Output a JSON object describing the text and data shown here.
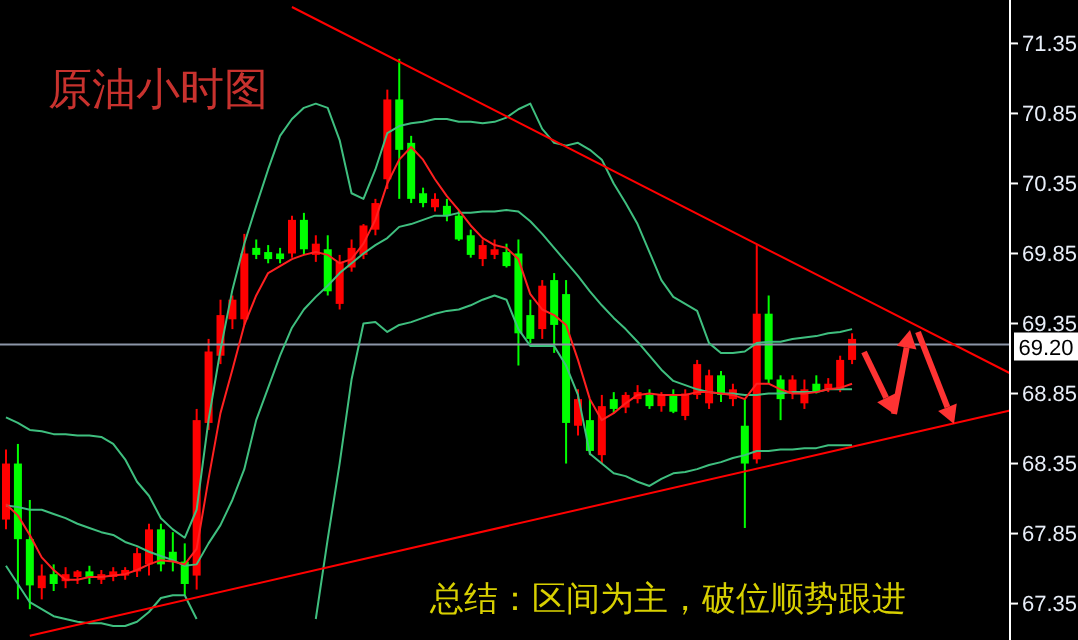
{
  "chart_data": {
    "type": "candlestick",
    "title": "原油小时图",
    "annotations": [
      "总结：区间为主，破位顺势跟进"
    ],
    "categories": [
      null,
      null,
      null,
      null,
      null,
      null,
      null,
      null,
      null,
      null,
      null,
      null,
      null,
      null,
      null,
      null,
      null,
      null,
      null,
      null,
      null,
      null,
      null,
      null,
      null,
      null,
      null,
      null,
      null,
      null,
      null,
      null,
      null,
      null,
      null,
      null,
      null,
      null,
      null,
      null,
      null,
      null,
      null,
      null,
      null,
      null,
      null,
      null,
      null,
      null,
      null,
      null,
      null,
      null,
      null,
      null,
      null,
      null,
      null,
      null,
      null,
      null,
      null,
      null,
      null,
      null,
      null,
      null,
      null,
      null,
      null,
      null
    ],
    "ohlc": [
      [
        67.95,
        68.45,
        67.88,
        68.35
      ],
      [
        68.35,
        68.49,
        67.38,
        67.81
      ],
      [
        67.81,
        68.09,
        67.31,
        67.48
      ],
      [
        67.46,
        67.63,
        67.38,
        67.55
      ],
      [
        67.56,
        67.63,
        67.44,
        67.49
      ],
      [
        67.51,
        67.61,
        67.46,
        67.56
      ],
      [
        67.54,
        67.59,
        67.49,
        67.58
      ],
      [
        67.58,
        67.62,
        67.49,
        67.54
      ],
      [
        67.52,
        67.59,
        67.49,
        67.56
      ],
      [
        67.54,
        67.61,
        67.51,
        67.58
      ],
      [
        67.55,
        67.61,
        67.52,
        67.59
      ],
      [
        67.58,
        67.75,
        67.54,
        67.71
      ],
      [
        67.63,
        67.92,
        67.55,
        67.88
      ],
      [
        67.88,
        67.92,
        67.58,
        67.63
      ],
      [
        67.72,
        67.86,
        67.58,
        67.65
      ],
      [
        67.65,
        67.78,
        67.41,
        67.49
      ],
      [
        67.55,
        68.74,
        67.45,
        68.66
      ],
      [
        68.64,
        69.24,
        68.59,
        69.15
      ],
      [
        69.12,
        69.52,
        69.06,
        69.41
      ],
      [
        69.38,
        69.55,
        69.31,
        69.52
      ],
      [
        69.38,
        69.99,
        69.34,
        69.85
      ],
      [
        69.89,
        69.95,
        69.81,
        69.84
      ],
      [
        69.86,
        69.91,
        69.78,
        69.81
      ],
      [
        69.85,
        69.89,
        69.78,
        69.81
      ],
      [
        69.85,
        70.12,
        69.82,
        70.09
      ],
      [
        70.09,
        70.14,
        69.84,
        69.88
      ],
      [
        69.84,
        69.98,
        69.79,
        69.92
      ],
      [
        69.88,
        69.98,
        69.55,
        69.58
      ],
      [
        69.49,
        69.84,
        69.45,
        69.79
      ],
      [
        69.75,
        69.95,
        69.72,
        69.89
      ],
      [
        69.84,
        70.06,
        69.81,
        70.05
      ],
      [
        70.02,
        70.24,
        69.98,
        70.21
      ],
      [
        70.38,
        71.02,
        70.31,
        70.95
      ],
      [
        70.95,
        71.24,
        70.24,
        70.59
      ],
      [
        70.64,
        70.69,
        70.21,
        70.24
      ],
      [
        70.28,
        70.32,
        70.18,
        70.21
      ],
      [
        70.18,
        70.28,
        70.15,
        70.24
      ],
      [
        70.19,
        70.24,
        70.08,
        70.12
      ],
      [
        70.12,
        70.16,
        69.94,
        69.95
      ],
      [
        69.98,
        70.02,
        69.82,
        69.84
      ],
      [
        69.81,
        69.95,
        69.76,
        69.91
      ],
      [
        69.84,
        69.95,
        69.81,
        69.88
      ],
      [
        69.86,
        69.92,
        69.75,
        69.76
      ],
      [
        69.85,
        69.95,
        69.05,
        69.28
      ],
      [
        69.41,
        69.52,
        69.21,
        69.24
      ],
      [
        69.31,
        69.66,
        69.24,
        69.62
      ],
      [
        69.66,
        69.71,
        69.14,
        69.34
      ],
      [
        69.56,
        69.66,
        68.35,
        68.64
      ],
      [
        68.62,
        68.88,
        68.55,
        68.81
      ],
      [
        68.66,
        68.81,
        68.41,
        68.44
      ],
      [
        68.41,
        68.84,
        68.35,
        68.76
      ],
      [
        68.81,
        68.86,
        68.71,
        68.74
      ],
      [
        68.75,
        68.86,
        68.71,
        68.84
      ],
      [
        68.81,
        68.91,
        68.78,
        68.86
      ],
      [
        68.84,
        68.88,
        68.74,
        68.76
      ],
      [
        68.76,
        68.86,
        68.72,
        68.84
      ],
      [
        68.84,
        68.88,
        68.71,
        68.72
      ],
      [
        68.69,
        68.88,
        68.66,
        68.85
      ],
      [
        68.84,
        69.09,
        68.81,
        69.06
      ],
      [
        68.78,
        69.02,
        68.74,
        68.98
      ],
      [
        68.98,
        69.01,
        68.79,
        68.84
      ],
      [
        68.81,
        68.92,
        68.76,
        68.88
      ],
      [
        68.62,
        68.81,
        67.89,
        68.35
      ],
      [
        68.38,
        69.91,
        68.35,
        69.42
      ],
      [
        69.42,
        69.55,
        68.92,
        68.95
      ],
      [
        68.95,
        68.98,
        68.66,
        68.81
      ],
      [
        68.85,
        68.98,
        68.81,
        68.95
      ],
      [
        68.78,
        68.95,
        68.74,
        68.88
      ],
      [
        68.92,
        68.98,
        68.85,
        68.86
      ],
      [
        68.88,
        68.96,
        68.86,
        68.92
      ],
      [
        68.88,
        69.12,
        68.86,
        69.09
      ],
      [
        69.09,
        69.28,
        69.06,
        69.24
      ]
    ],
    "colors": [
      "#ff0000",
      "#00ff00",
      "#00ff00",
      "#ff0000",
      "#00ff00",
      "#ff0000",
      "#ff0000",
      "#00ff00",
      "#ff0000",
      "#ff0000",
      "#ff0000",
      "#ff0000",
      "#ff0000",
      "#00ff00",
      "#00ff00",
      "#00ff00",
      "#ff0000",
      "#ff0000",
      "#ff0000",
      "#ff0000",
      "#ff0000",
      "#00ff00",
      "#00ff00",
      "#00ff00",
      "#ff0000",
      "#00ff00",
      "#ff0000",
      "#00ff00",
      "#ff0000",
      "#ff0000",
      "#ff0000",
      "#ff0000",
      "#ff0000",
      "#00ff00",
      "#00ff00",
      "#00ff00",
      "#ff0000",
      "#00ff00",
      "#00ff00",
      "#00ff00",
      "#ff0000",
      "#ff0000",
      "#00ff00",
      "#00ff00",
      "#00ff00",
      "#ff0000",
      "#00ff00",
      "#00ff00",
      "#ff0000",
      "#00ff00",
      "#ff0000",
      "#00ff00",
      "#ff0000",
      "#ff0000",
      "#00ff00",
      "#ff0000",
      "#00ff00",
      "#ff0000",
      "#ff0000",
      "#ff0000",
      "#00ff00",
      "#ff0000",
      "#00ff00",
      "#ff0000",
      "#00ff00",
      "#00ff00",
      "#ff0000",
      "#ff0000",
      "#00ff00",
      "#ff0000",
      "#ff0000",
      "#ff0000"
    ],
    "series": [
      {
        "type": "line",
        "color": "#3fbf7f",
        "values": [
          68.68,
          68.64,
          68.59,
          68.58,
          68.56,
          68.56,
          68.55,
          68.55,
          68.54,
          68.49,
          68.38,
          68.22,
          68.12,
          67.96,
          67.88,
          67.82,
          68.02,
          68.66,
          69.16,
          69.59,
          69.92,
          70.19,
          70.45,
          70.69,
          70.81,
          70.89,
          70.92,
          70.89,
          70.66,
          70.28,
          70.24,
          70.45,
          70.71,
          70.76,
          70.78,
          70.79,
          70.81,
          70.81,
          70.79,
          70.79,
          70.78,
          70.79,
          70.82,
          70.88,
          70.92,
          70.74,
          70.64,
          70.62,
          70.64,
          70.59,
          70.52,
          70.35,
          70.21,
          70.06,
          69.86,
          69.66,
          69.54,
          69.49,
          69.44,
          69.21,
          69.14,
          69.14,
          69.15,
          69.21,
          69.22,
          69.22,
          69.24,
          69.25,
          69.26,
          69.28,
          69.29,
          69.31
        ]
      },
      {
        "type": "line",
        "color": "#3fbf7f",
        "values": [
          68.05,
          68.04,
          68.02,
          68.02,
          67.99,
          67.96,
          67.92,
          67.89,
          67.86,
          67.84,
          67.79,
          67.76,
          67.72,
          67.69,
          67.66,
          67.62,
          67.63,
          67.78,
          67.91,
          68.09,
          68.31,
          68.66,
          68.89,
          69.12,
          69.32,
          69.45,
          69.54,
          69.62,
          69.71,
          69.78,
          69.85,
          69.91,
          69.96,
          70.04,
          70.06,
          70.09,
          70.12,
          70.12,
          70.14,
          70.14,
          70.15,
          70.15,
          70.16,
          70.15,
          70.08,
          69.99,
          69.89,
          69.79,
          69.69,
          69.58,
          69.48,
          69.39,
          69.31,
          69.22,
          69.12,
          69.02,
          68.94,
          68.91,
          68.88,
          68.86,
          68.85,
          68.85,
          68.84,
          68.84,
          68.85,
          68.85,
          68.86,
          68.86,
          68.86,
          68.88,
          68.88,
          68.88
        ]
      },
      {
        "type": "line",
        "color": "#3fbf7f",
        "values": [
          67.62,
          67.49,
          67.36,
          67.31,
          67.26,
          67.24,
          67.22,
          67.21,
          67.21,
          67.19,
          67.19,
          67.22,
          67.29,
          67.39,
          67.41,
          67.41,
          67.24,
          null,
          null,
          null,
          null,
          null,
          null,
          null,
          null,
          null,
          67.24,
          67.81,
          68.35,
          68.95,
          69.35,
          69.36,
          69.29,
          69.34,
          69.36,
          69.39,
          69.42,
          69.44,
          69.45,
          69.48,
          69.52,
          69.55,
          69.52,
          69.31,
          69.19,
          69.19,
          69.19,
          69.05,
          68.84,
          68.42,
          68.35,
          68.28,
          68.26,
          68.22,
          68.19,
          68.24,
          68.28,
          68.29,
          68.31,
          68.34,
          68.36,
          68.39,
          68.41,
          68.44,
          68.44,
          68.45,
          68.45,
          68.46,
          68.46,
          68.48,
          68.48,
          68.48
        ]
      },
      {
        "type": "line",
        "color": "#ff2020",
        "values": [
          68.06,
          67.98,
          67.84,
          67.68,
          67.59,
          67.52,
          67.52,
          67.54,
          67.54,
          67.55,
          67.56,
          67.59,
          67.63,
          67.66,
          67.65,
          67.63,
          67.74,
          68.24,
          68.71,
          69.02,
          69.34,
          69.55,
          69.71,
          69.76,
          69.81,
          69.84,
          69.86,
          69.84,
          69.78,
          69.81,
          69.92,
          70.09,
          70.35,
          70.52,
          70.61,
          70.52,
          70.38,
          70.26,
          70.16,
          70.05,
          69.96,
          69.91,
          69.89,
          69.81,
          69.56,
          69.45,
          69.41,
          69.34,
          69.09,
          68.81,
          68.66,
          68.71,
          68.78,
          68.84,
          68.85,
          68.84,
          68.84,
          68.84,
          68.86,
          68.86,
          68.85,
          68.84,
          68.81,
          68.92,
          68.92,
          68.88,
          68.85,
          68.85,
          68.86,
          68.88,
          68.89,
          68.92
        ]
      },
      {
        "type": "line",
        "color": "#ff0000",
        "values": [
          null,
          null,
          null,
          null,
          null,
          null,
          null,
          null,
          null,
          null,
          null,
          null,
          null,
          null,
          null,
          null,
          null,
          null,
          null,
          null,
          null,
          null,
          null,
          null,
          71.61,
          null,
          null,
          null,
          null,
          null,
          null,
          null,
          null,
          null,
          null,
          null,
          null,
          null,
          null,
          null,
          null,
          null,
          null,
          null,
          null,
          null,
          null,
          null,
          null,
          null,
          null,
          null,
          null,
          null,
          null,
          null,
          null,
          null,
          null,
          null,
          null,
          null,
          null,
          null,
          null,
          null,
          null,
          null,
          null,
          null,
          null,
          69.57
        ]
      },
      {
        "type": "line",
        "color": "#ff0000",
        "values": [
          null,
          null,
          67.12,
          null,
          null,
          null,
          null,
          null,
          null,
          null,
          null,
          null,
          null,
          null,
          null,
          null,
          null,
          null,
          null,
          null,
          null,
          null,
          null,
          null,
          null,
          null,
          null,
          null,
          null,
          null,
          null,
          null,
          null,
          null,
          null,
          null,
          null,
          null,
          null,
          null,
          null,
          null,
          null,
          null,
          null,
          null,
          null,
          null,
          null,
          null,
          null,
          null,
          null,
          null,
          null,
          null,
          null,
          null,
          null,
          null,
          null,
          null,
          null,
          null,
          null,
          null,
          null,
          null,
          null,
          null,
          null,
          68.47
        ]
      }
    ],
    "ylim": [
      67.09,
      71.66
    ],
    "yticks": [
      67.35,
      67.85,
      68.35,
      68.85,
      69.35,
      69.85,
      70.35,
      70.85,
      71.35
    ],
    "ref_lines": [
      {
        "axis": "y",
        "value": 69.2,
        "label": "69.20",
        "color": "#8c96a8"
      }
    ]
  }
}
